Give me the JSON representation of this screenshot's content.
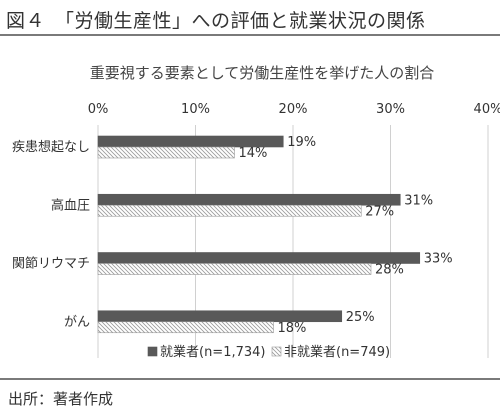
{
  "figure": {
    "title": "図４　「労働生産性」への評価と就業状況の関係",
    "source": "出所：著者作成"
  },
  "colors": {
    "employed": "#595959",
    "non_employed_fill": "#ffffff",
    "non_employed_hatch": "#9a9a9a",
    "grid": "#d0d0d0",
    "rule": "#7a7a7a"
  },
  "chart_data": {
    "type": "bar",
    "orientation": "horizontal",
    "title": "重要視する要素として労働生産性を挙げた人の割合",
    "categories": [
      "疾患想起なし",
      "高血圧",
      "関節リウマチ",
      "がん"
    ],
    "series": [
      {
        "name": "就業者(n=1,734)",
        "values": [
          19,
          31,
          33,
          25
        ],
        "value_labels": [
          "19%",
          "31%",
          "33%",
          "25%"
        ]
      },
      {
        "name": "非就業者(n=749)",
        "values": [
          14,
          27,
          28,
          18
        ],
        "value_labels": [
          "14%",
          "27%",
          "28%",
          "18%"
        ]
      }
    ],
    "xlim": [
      0,
      40
    ],
    "xticks": [
      "0%",
      "10%",
      "20%",
      "30%",
      "40%"
    ],
    "x_axis_position": "top",
    "grid": true,
    "legend": "bottom-center"
  }
}
